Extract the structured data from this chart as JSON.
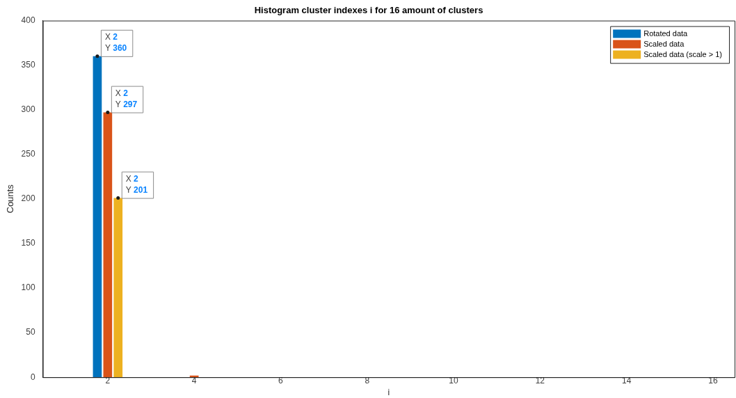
{
  "chart_data": {
    "type": "bar",
    "title": "Histogram cluster indexes i for 16 amount of clusters",
    "xlabel": "i",
    "ylabel": "Counts",
    "categories": [
      null,
      "2",
      null,
      "4",
      null,
      "6",
      null,
      "8",
      null,
      "10",
      null,
      "12",
      null,
      "14",
      null,
      "16"
    ],
    "series": [
      {
        "name": "Rotated data",
        "color": "#0072bd",
        "values": [
          0,
          360,
          0,
          0,
          0,
          0,
          0,
          0,
          0,
          0,
          0,
          0,
          0,
          0,
          0,
          0
        ]
      },
      {
        "name": "Scaled data",
        "color": "#d95319",
        "values": [
          0,
          297,
          0,
          2,
          0,
          0,
          0,
          0,
          0,
          0,
          0,
          0,
          0,
          0,
          0,
          0
        ]
      },
      {
        "name": "Scaled data (scale > 1)",
        "color": "#edb120",
        "values": [
          0,
          201,
          0,
          0,
          0,
          0,
          0,
          0,
          0,
          0,
          0,
          0,
          0,
          0,
          0,
          0
        ]
      }
    ],
    "ylim": [
      0,
      400
    ],
    "yticks": [
      0,
      50,
      100,
      150,
      200,
      250,
      300,
      350,
      400
    ],
    "grid": false,
    "legend": "top right",
    "annotations": [
      "X 2\nY 360",
      "X 2\nY 297",
      "X 2\nY 201"
    ]
  }
}
